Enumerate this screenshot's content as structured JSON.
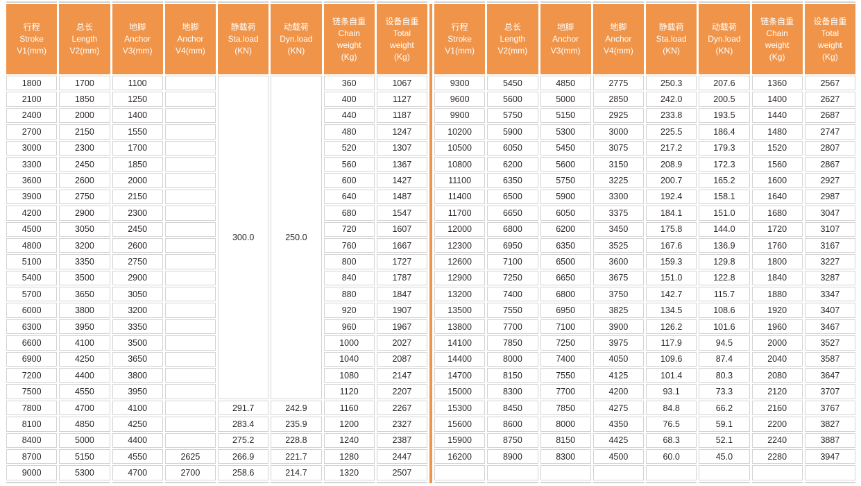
{
  "colors": {
    "header_bg": "#EF9449",
    "divider": "#EF9449",
    "cell_border": "#D4D2D2",
    "header_text": "#FFFFFF",
    "data_text": "#2A2526",
    "background": "#FFFFFF"
  },
  "table": {
    "columns": [
      {
        "key": "stroke",
        "lines": [
          "行程",
          "Stroke",
          "V1(mm)"
        ]
      },
      {
        "key": "length",
        "lines": [
          "总长",
          "Length",
          "V2(mm)"
        ]
      },
      {
        "key": "anchor-v3",
        "lines": [
          "地脚",
          "Anchor",
          "V3(mm)"
        ]
      },
      {
        "key": "anchor-v4",
        "lines": [
          "地脚",
          "Anchor",
          "V4(mm)"
        ]
      },
      {
        "key": "sta-load",
        "lines": [
          "静载荷",
          "Sta.load",
          "(KN)"
        ]
      },
      {
        "key": "dyn-load",
        "lines": [
          "动载荷",
          "Dyn.load",
          "(KN)"
        ]
      },
      {
        "key": "chain-weight",
        "lines": [
          "链条自重",
          "Chain",
          "weight",
          "(Kg)"
        ]
      },
      {
        "key": "total-weight",
        "lines": [
          "设备自重",
          "Total",
          "weight",
          "(Kg)"
        ]
      }
    ],
    "left": {
      "merge": {
        "cols": [
          4,
          5
        ],
        "values": [
          "300.0",
          "250.0"
        ],
        "span": 20
      },
      "rows": [
        [
          1800,
          1700,
          1100,
          "",
          null,
          null,
          360,
          1067
        ],
        [
          2100,
          1850,
          1250,
          "",
          null,
          null,
          400,
          1127
        ],
        [
          2400,
          2000,
          1400,
          "",
          null,
          null,
          440,
          1187
        ],
        [
          2700,
          2150,
          1550,
          "",
          null,
          null,
          480,
          1247
        ],
        [
          3000,
          2300,
          1700,
          "",
          null,
          null,
          520,
          1307
        ],
        [
          3300,
          2450,
          1850,
          "",
          null,
          null,
          560,
          1367
        ],
        [
          3600,
          2600,
          2000,
          "",
          null,
          null,
          600,
          1427
        ],
        [
          3900,
          2750,
          2150,
          "",
          null,
          null,
          640,
          1487
        ],
        [
          4200,
          2900,
          2300,
          "",
          null,
          null,
          680,
          1547
        ],
        [
          4500,
          3050,
          2450,
          "",
          null,
          null,
          720,
          1607
        ],
        [
          4800,
          3200,
          2600,
          "",
          null,
          null,
          760,
          1667
        ],
        [
          5100,
          3350,
          2750,
          "",
          null,
          null,
          800,
          1727
        ],
        [
          5400,
          3500,
          2900,
          "",
          null,
          null,
          840,
          1787
        ],
        [
          5700,
          3650,
          3050,
          "",
          null,
          null,
          880,
          1847
        ],
        [
          6000,
          3800,
          3200,
          "",
          null,
          null,
          920,
          1907
        ],
        [
          6300,
          3950,
          3350,
          "",
          null,
          null,
          960,
          1967
        ],
        [
          6600,
          4100,
          3500,
          "",
          null,
          null,
          1000,
          2027
        ],
        [
          6900,
          4250,
          3650,
          "",
          null,
          null,
          1040,
          2087
        ],
        [
          7200,
          4400,
          3800,
          "",
          null,
          null,
          1080,
          2147
        ],
        [
          7500,
          4550,
          3950,
          "",
          null,
          null,
          1120,
          2207
        ],
        [
          7800,
          4700,
          4100,
          "",
          "291.7",
          "242.9",
          1160,
          2267
        ],
        [
          8100,
          4850,
          4250,
          "",
          "283.4",
          "235.9",
          1200,
          2327
        ],
        [
          8400,
          5000,
          4400,
          "",
          "275.2",
          "228.8",
          1240,
          2387
        ],
        [
          8700,
          5150,
          4550,
          2625,
          "266.9",
          "221.7",
          1280,
          2447
        ],
        [
          9000,
          5300,
          4700,
          2700,
          "258.6",
          "214.7",
          1320,
          2507
        ]
      ]
    },
    "right": {
      "merge": null,
      "rows": [
        [
          9300,
          5450,
          4850,
          2775,
          "250.3",
          "207.6",
          1360,
          2567
        ],
        [
          9600,
          5600,
          5000,
          2850,
          "242.0",
          "200.5",
          1400,
          2627
        ],
        [
          9900,
          5750,
          5150,
          2925,
          "233.8",
          "193.5",
          1440,
          2687
        ],
        [
          10200,
          5900,
          5300,
          3000,
          "225.5",
          "186.4",
          1480,
          2747
        ],
        [
          10500,
          6050,
          5450,
          3075,
          "217.2",
          "179.3",
          1520,
          2807
        ],
        [
          10800,
          6200,
          5600,
          3150,
          "208.9",
          "172.3",
          1560,
          2867
        ],
        [
          11100,
          6350,
          5750,
          3225,
          "200.7",
          "165.2",
          1600,
          2927
        ],
        [
          11400,
          6500,
          5900,
          3300,
          "192.4",
          "158.1",
          1640,
          2987
        ],
        [
          11700,
          6650,
          6050,
          3375,
          "184.1",
          "151.0",
          1680,
          3047
        ],
        [
          12000,
          6800,
          6200,
          3450,
          "175.8",
          "144.0",
          1720,
          3107
        ],
        [
          12300,
          6950,
          6350,
          3525,
          "167.6",
          "136.9",
          1760,
          3167
        ],
        [
          12600,
          7100,
          6500,
          3600,
          "159.3",
          "129.8",
          1800,
          3227
        ],
        [
          12900,
          7250,
          6650,
          3675,
          "151.0",
          "122.8",
          1840,
          3287
        ],
        [
          13200,
          7400,
          6800,
          3750,
          "142.7",
          "115.7",
          1880,
          3347
        ],
        [
          13500,
          7550,
          6950,
          3825,
          "134.5",
          "108.6",
          1920,
          3407
        ],
        [
          13800,
          7700,
          7100,
          3900,
          "126.2",
          "101.6",
          1960,
          3467
        ],
        [
          14100,
          7850,
          7250,
          3975,
          "117.9",
          "94.5",
          2000,
          3527
        ],
        [
          14400,
          8000,
          7400,
          4050,
          "109.6",
          "87.4",
          2040,
          3587
        ],
        [
          14700,
          8150,
          7550,
          4125,
          "101.4",
          "80.3",
          2080,
          3647
        ],
        [
          15000,
          8300,
          7700,
          4200,
          "93.1",
          "73.3",
          2120,
          3707
        ],
        [
          15300,
          8450,
          7850,
          4275,
          "84.8",
          "66.2",
          2160,
          3767
        ],
        [
          15600,
          8600,
          8000,
          4350,
          "76.5",
          "59.1",
          2200,
          3827
        ],
        [
          15900,
          8750,
          8150,
          4425,
          "68.3",
          "52.1",
          2240,
          3887
        ],
        [
          16200,
          8900,
          8300,
          4500,
          "60.0",
          "45.0",
          2280,
          3947
        ],
        [
          "",
          "",
          "",
          "",
          "",
          "",
          "",
          ""
        ]
      ]
    }
  }
}
